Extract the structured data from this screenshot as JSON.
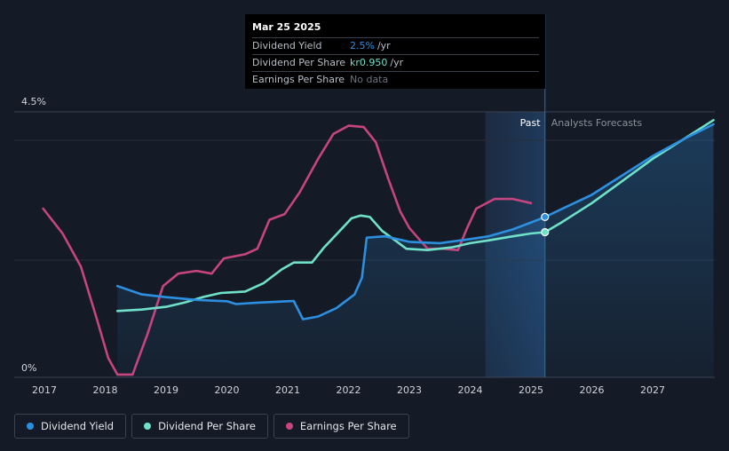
{
  "chart_data": {
    "type": "line",
    "x_ticks": [
      "2017",
      "2018",
      "2019",
      "2020",
      "2021",
      "2022",
      "2023",
      "2024",
      "2025",
      "2026",
      "2027"
    ],
    "y_ticks": [
      "4.5%",
      "0%"
    ],
    "past_label": "Past",
    "forecast_label": "Analysts Forecasts",
    "forecast_start": 2024.25,
    "tooltip_x": 2025.23,
    "series": [
      {
        "name": "Dividend Yield",
        "color": "#2d8fe0",
        "axis": "percent",
        "points": [
          [
            2018.2,
            3.3
          ],
          [
            2018.6,
            3.0
          ],
          [
            2019.0,
            2.9
          ],
          [
            2019.5,
            2.8
          ],
          [
            2020.0,
            2.75
          ],
          [
            2020.15,
            2.65
          ],
          [
            2020.5,
            2.7
          ],
          [
            2021.0,
            2.75
          ],
          [
            2021.1,
            2.76
          ],
          [
            2021.25,
            2.1
          ],
          [
            2021.5,
            2.2
          ],
          [
            2021.8,
            2.5
          ],
          [
            2022.1,
            3.0
          ],
          [
            2022.22,
            3.6
          ],
          [
            2022.3,
            5.05
          ],
          [
            2022.6,
            5.1
          ],
          [
            2023.0,
            4.9
          ],
          [
            2023.5,
            4.85
          ],
          [
            2024.0,
            5.0
          ],
          [
            2024.3,
            5.1
          ],
          [
            2024.7,
            5.35
          ],
          [
            2025.0,
            5.6
          ],
          [
            2025.23,
            5.8
          ],
          [
            2026.0,
            6.6
          ],
          [
            2026.5,
            7.3
          ],
          [
            2027.0,
            8.0
          ],
          [
            2027.5,
            8.6
          ],
          [
            2028.0,
            9.15
          ]
        ]
      },
      {
        "name": "Dividend Per Share",
        "color": "#6fe1c9",
        "axis": "value",
        "points": [
          [
            2018.2,
            2.4
          ],
          [
            2018.6,
            2.45
          ],
          [
            2019.0,
            2.55
          ],
          [
            2019.3,
            2.7
          ],
          [
            2019.6,
            2.9
          ],
          [
            2019.9,
            3.05
          ],
          [
            2020.3,
            3.1
          ],
          [
            2020.6,
            3.4
          ],
          [
            2020.9,
            3.9
          ],
          [
            2021.1,
            4.15
          ],
          [
            2021.4,
            4.15
          ],
          [
            2021.6,
            4.7
          ],
          [
            2021.9,
            5.4
          ],
          [
            2022.05,
            5.75
          ],
          [
            2022.2,
            5.85
          ],
          [
            2022.35,
            5.8
          ],
          [
            2022.55,
            5.3
          ],
          [
            2022.8,
            4.9
          ],
          [
            2022.95,
            4.65
          ],
          [
            2023.3,
            4.6
          ],
          [
            2023.7,
            4.7
          ],
          [
            2024.0,
            4.85
          ],
          [
            2024.3,
            4.95
          ],
          [
            2024.7,
            5.1
          ],
          [
            2025.0,
            5.2
          ],
          [
            2025.23,
            5.25
          ],
          [
            2025.5,
            5.6
          ],
          [
            2026.0,
            6.3
          ],
          [
            2026.5,
            7.1
          ],
          [
            2027.0,
            7.9
          ],
          [
            2027.5,
            8.6
          ],
          [
            2028.0,
            9.3
          ]
        ]
      },
      {
        "name": "Earnings Per Share",
        "color": "#c6457e",
        "axis": "value",
        "points": [
          [
            2016.98,
            6.1
          ],
          [
            2017.3,
            5.2
          ],
          [
            2017.6,
            4.0
          ],
          [
            2017.85,
            2.2
          ],
          [
            2018.05,
            0.7
          ],
          [
            2018.2,
            0.1
          ],
          [
            2018.45,
            0.1
          ],
          [
            2018.7,
            1.6
          ],
          [
            2018.95,
            3.3
          ],
          [
            2019.2,
            3.75
          ],
          [
            2019.5,
            3.85
          ],
          [
            2019.75,
            3.75
          ],
          [
            2019.95,
            4.3
          ],
          [
            2020.3,
            4.45
          ],
          [
            2020.5,
            4.65
          ],
          [
            2020.7,
            5.7
          ],
          [
            2020.95,
            5.9
          ],
          [
            2021.2,
            6.7
          ],
          [
            2021.5,
            7.9
          ],
          [
            2021.75,
            8.8
          ],
          [
            2022.0,
            9.1
          ],
          [
            2022.25,
            9.05
          ],
          [
            2022.45,
            8.5
          ],
          [
            2022.65,
            7.2
          ],
          [
            2022.85,
            6.0
          ],
          [
            2023.0,
            5.4
          ],
          [
            2023.3,
            4.65
          ],
          [
            2023.55,
            4.65
          ],
          [
            2023.8,
            4.6
          ],
          [
            2023.95,
            5.4
          ],
          [
            2024.1,
            6.1
          ],
          [
            2024.4,
            6.45
          ],
          [
            2024.7,
            6.45
          ],
          [
            2025.0,
            6.3
          ]
        ]
      }
    ]
  },
  "tooltip": {
    "date": "Mar 25 2025",
    "rows": [
      {
        "label": "Dividend Yield",
        "value": "2.5%",
        "unit": "/yr",
        "color": "#2d8fe0"
      },
      {
        "label": "Dividend Per Share",
        "value": "kr0.950",
        "unit": "/yr",
        "color": "#6fe1c9"
      },
      {
        "label": "Earnings Per Share",
        "value": "No data",
        "unit": "",
        "color": "#6a717c"
      }
    ]
  },
  "legend": [
    {
      "label": "Dividend Yield",
      "color": "#2d8fe0"
    },
    {
      "label": "Dividend Per Share",
      "color": "#6fe1c9"
    },
    {
      "label": "Earnings Per Share",
      "color": "#c6457e"
    }
  ]
}
